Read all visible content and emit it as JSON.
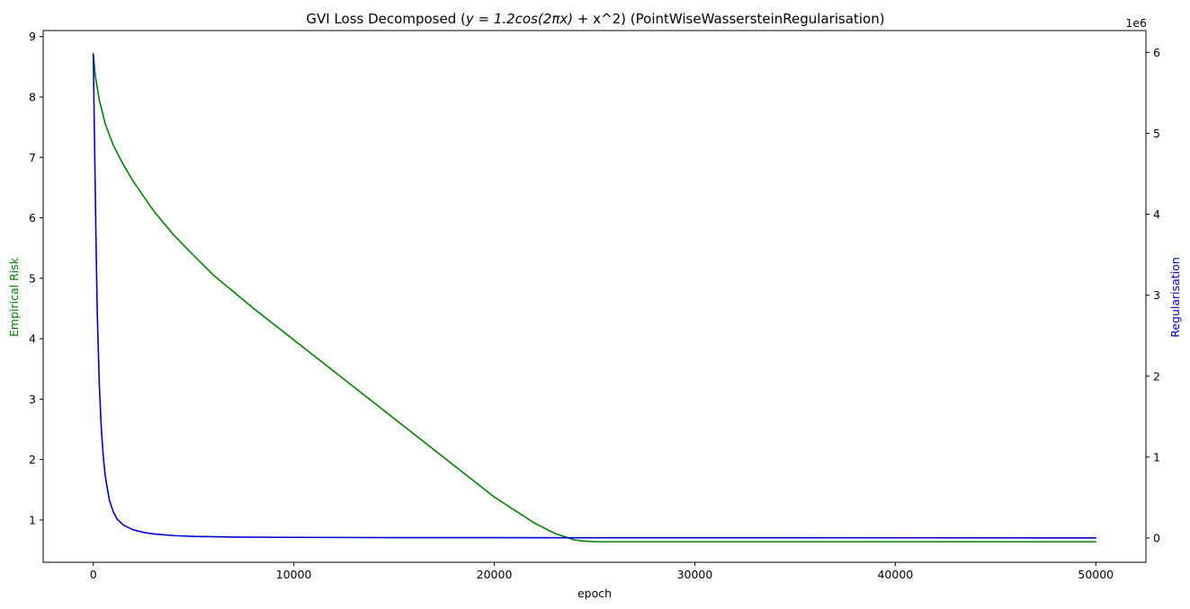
{
  "chart_data": {
    "type": "line",
    "title": "GVI Loss Decomposed ($y = 1.2\\cos(2\\pi x)$ + x^2) (PointWiseWassersteinRegularisation)",
    "title_display": {
      "before": "GVI Loss Decomposed (",
      "math": "y = 1.2cos(2πx)",
      "after": " + x^2) (PointWiseWassersteinRegularisation)"
    },
    "xlabel": "epoch",
    "ylabel_left": "Empirical Risk",
    "ylabel_right": "Regularisation",
    "right_offset_text": "1e6",
    "xlim": [
      -2500,
      52500
    ],
    "ylim_left": [
      0.3,
      9.1
    ],
    "ylim_right": [
      -300000,
      6270000
    ],
    "x_ticks": [
      0,
      10000,
      20000,
      30000,
      40000,
      50000
    ],
    "x_tick_labels": [
      "0",
      "10000",
      "20000",
      "30000",
      "40000",
      "50000"
    ],
    "left_ticks": [
      1,
      2,
      3,
      4,
      5,
      6,
      7,
      8,
      9
    ],
    "left_tick_labels": [
      "1",
      "2",
      "3",
      "4",
      "5",
      "6",
      "7",
      "8",
      "9"
    ],
    "right_ticks": [
      0,
      1000000,
      2000000,
      3000000,
      4000000,
      5000000,
      6000000
    ],
    "right_tick_labels": [
      "0",
      "1",
      "2",
      "3",
      "4",
      "5",
      "6"
    ],
    "grid": false,
    "series": [
      {
        "name": "Empirical Risk",
        "axis": "left",
        "color": "#008000",
        "x": [
          0,
          100,
          300,
          600,
          1000,
          1500,
          2000,
          3000,
          4000,
          5000,
          6000,
          8000,
          10000,
          12000,
          14000,
          16000,
          18000,
          20000,
          22000,
          23000,
          24000,
          24500,
          25000,
          25500,
          26000,
          28000,
          30000,
          35000,
          40000,
          45000,
          50000
        ],
        "y": [
          8.72,
          8.35,
          7.95,
          7.55,
          7.2,
          6.88,
          6.6,
          6.12,
          5.72,
          5.38,
          5.05,
          4.5,
          3.98,
          3.46,
          2.94,
          2.42,
          1.9,
          1.38,
          0.95,
          0.78,
          0.67,
          0.65,
          0.64,
          0.64,
          0.64,
          0.64,
          0.64,
          0.64,
          0.64,
          0.64,
          0.64
        ]
      },
      {
        "name": "Regularisation",
        "axis": "right",
        "color": "#0000cc",
        "x": [
          0,
          50,
          100,
          150,
          200,
          300,
          400,
          500,
          600,
          800,
          1000,
          1200,
          1500,
          2000,
          2500,
          3000,
          4000,
          5000,
          7000,
          10000,
          15000,
          20000,
          30000,
          40000,
          50000
        ],
        "y": [
          5970000,
          5100000,
          4250000,
          3450000,
          2750000,
          1900000,
          1350000,
          1000000,
          760000,
          470000,
          320000,
          230000,
          160000,
          100000,
          70000,
          50000,
          30000,
          20000,
          12000,
          8000,
          5000,
          4000,
          3000,
          2500,
          2000
        ]
      }
    ]
  }
}
